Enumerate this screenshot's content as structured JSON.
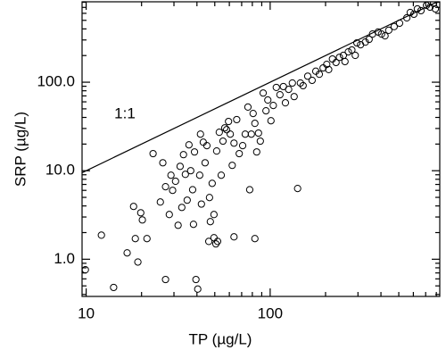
{
  "chart_data": {
    "type": "scatter",
    "x_label": "TP (µg/L)",
    "y_label": "SRP (µg/L)",
    "annotation": "1:1",
    "log_x": true,
    "log_y": true,
    "color": "#000000",
    "xlim": [
      9.5,
      835
    ],
    "ylim": [
      0.38,
      810
    ],
    "xticks": [
      10,
      100
    ],
    "yticks": [
      {
        "value": 1,
        "label": "1.0"
      },
      {
        "value": 10,
        "label": "10.0"
      },
      {
        "value": 100,
        "label": "100.0"
      }
    ],
    "xminorticks": [
      20,
      30,
      40,
      50,
      60,
      70,
      80,
      90,
      200,
      300,
      400,
      500,
      600,
      700,
      800
    ],
    "yminorticks": [
      0.4,
      0.5,
      0.6,
      0.7,
      0.8,
      0.9,
      2,
      3,
      4,
      5,
      6,
      7,
      8,
      9,
      20,
      30,
      40,
      50,
      60,
      70,
      80,
      90,
      200,
      300,
      400,
      500,
      600,
      700,
      800
    ],
    "x": [
      9.9,
      12.1,
      14.1,
      16.7,
      18.1,
      18.5,
      19.1,
      19.8,
      20.2,
      21.4,
      23.1,
      25.3,
      26.1,
      27.0,
      27.0,
      28.3,
      28.9,
      29.5,
      30.6,
      31.6,
      32.4,
      33.1,
      33.8,
      34.6,
      35.4,
      36.2,
      37.0,
      37.9,
      38.3,
      38.8,
      39.5,
      40.4,
      41.4,
      41.8,
      42.3,
      43.3,
      44.3,
      45.3,
      46.4,
      46.8,
      47.3,
      48.4,
      49.5,
      49.5,
      50.7,
      51.2,
      51.8,
      52.9,
      54.2,
      55.4,
      56.7,
      58.0,
      59.4,
      60.7,
      62.2,
      63.6,
      63.6,
      65.8,
      67.9,
      70.9,
      73.2,
      75.7,
      77.4,
      79.0,
      80.8,
      82.6,
      82.6,
      84.5,
      86.4,
      88.4,
      91.6,
      94.9,
      97.1,
      101,
      104,
      108,
      113,
      118,
      121,
      126,
      132,
      135,
      141,
      146,
      151,
      160,
      169,
      177,
      185,
      194,
      203,
      208,
      218,
      228,
      238,
      250,
      255,
      266,
      278,
      290,
      296,
      310,
      329,
      345,
      360,
      386,
      403,
      421,
      441,
      472,
      505,
      553,
      577,
      604,
      631,
      660,
      707,
      739,
      773,
      790
    ],
    "values": [
      0.76,
      1.87,
      0.48,
      1.18,
      3.95,
      1.71,
      0.93,
      3.35,
      2.78,
      1.71,
      15.6,
      4.43,
      12.3,
      0.59,
      6.6,
      3.2,
      8.9,
      6.0,
      7.6,
      2.42,
      11.2,
      3.85,
      15.2,
      9.1,
      4.65,
      19.6,
      10,
      6.1,
      2.48,
      16.3,
      0.59,
      0.46,
      8.9,
      25.9,
      4.2,
      21.0,
      12.3,
      19.2,
      1.59,
      4.98,
      2.66,
      7.2,
      3.2,
      1.75,
      1.49,
      16.7,
      1.59,
      27.2,
      8.9,
      21.6,
      30.5,
      29.1,
      36.0,
      25.9,
      11.5,
      1.79,
      20.5,
      37.8,
      15.6,
      19.2,
      25.9,
      52.4,
      6.1,
      25.9,
      44.3,
      34.3,
      1.71,
      16.3,
      26.6,
      21.6,
      75.5,
      47.5,
      62.9,
      36.7,
      54.6,
      87.3,
      72.2,
      89.3,
      58.5,
      83.0,
      97.9,
      68.8,
      6.3,
      97.9,
      91.4,
      117,
      105,
      133,
      123,
      145,
      159,
      139,
      183,
      167,
      191,
      201,
      171,
      220,
      231,
      201,
      278,
      265,
      284,
      305,
      350,
      369,
      350,
      334,
      386,
      425,
      464,
      533,
      613,
      586,
      674,
      643,
      738,
      705,
      775,
      674
    ]
  }
}
